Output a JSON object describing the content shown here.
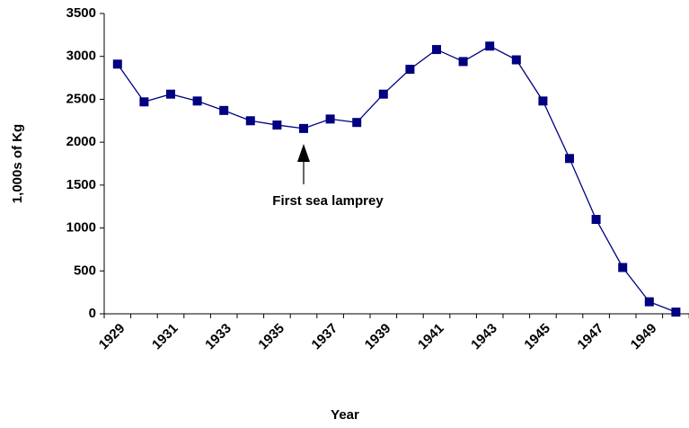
{
  "chart_data": {
    "type": "line",
    "xlabel": "Year",
    "ylabel": "1,000s of Kg",
    "annotation": "First sea lamprey",
    "categories": [
      "1929",
      null,
      "1931",
      null,
      "1933",
      null,
      "1935",
      null,
      "1937",
      null,
      "1939",
      null,
      "1941",
      null,
      "1943",
      null,
      "1945",
      null,
      "1947",
      null,
      "1949",
      null
    ],
    "values": [
      2910,
      2470,
      2560,
      2480,
      2370,
      2250,
      2200,
      2160,
      2270,
      2230,
      2560,
      2850,
      3080,
      2940,
      3120,
      2960,
      2480,
      1810,
      1100,
      540,
      140,
      20
    ],
    "color": "#000080",
    "ylim": [
      0,
      3500
    ],
    "yticks": [
      0,
      500,
      1000,
      1500,
      2000,
      2500,
      3000,
      3500
    ]
  }
}
